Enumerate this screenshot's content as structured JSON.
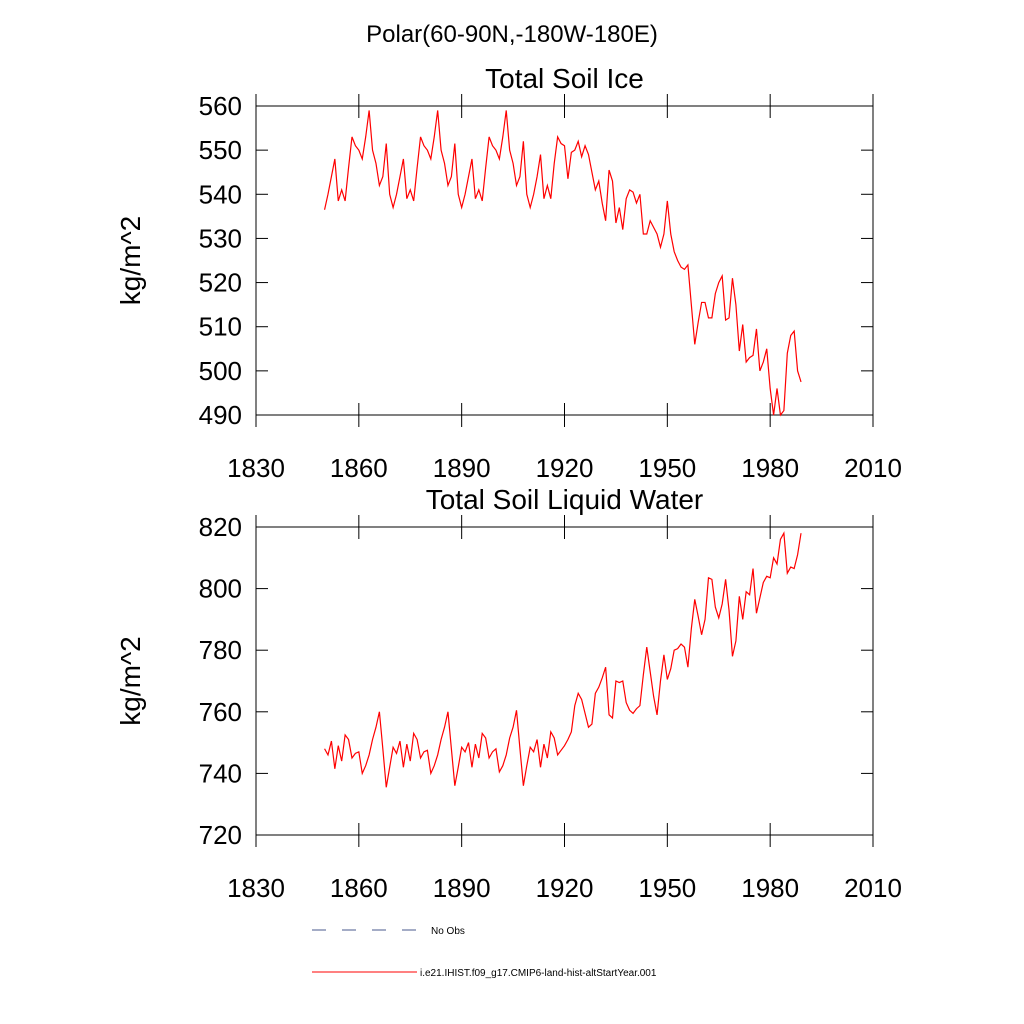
{
  "title": "Polar(60-90N,-180W-180E)",
  "chart_data": [
    {
      "type": "line",
      "title": "Total Soil Ice",
      "y_label": "kg/m^2",
      "x": [
        1850,
        1851,
        1852,
        1853,
        1854,
        1855,
        1856,
        1857,
        1858,
        1859,
        1860,
        1861,
        1862,
        1863,
        1864,
        1865,
        1866,
        1867,
        1868,
        1869,
        1870,
        1871,
        1872,
        1873,
        1874,
        1875,
        1876,
        1877,
        1878,
        1879,
        1880,
        1881,
        1882,
        1883,
        1884,
        1885,
        1886,
        1887,
        1888,
        1889,
        1890,
        1891,
        1892,
        1893,
        1894,
        1895,
        1896,
        1897,
        1898,
        1899,
        1900,
        1901,
        1902,
        1903,
        1904,
        1905,
        1906,
        1907,
        1908,
        1909,
        1910,
        1911,
        1912,
        1913,
        1914,
        1915,
        1916,
        1917,
        1918,
        1919,
        1920,
        1921,
        1922,
        1923,
        1924,
        1925,
        1926,
        1927,
        1928,
        1929,
        1930,
        1931,
        1932,
        1933,
        1934,
        1935,
        1936,
        1937,
        1938,
        1939,
        1940,
        1941,
        1942,
        1943,
        1944,
        1945,
        1946,
        1947,
        1948,
        1949,
        1950,
        1951,
        1952,
        1953,
        1954,
        1955,
        1956,
        1957,
        1958,
        1959,
        1960,
        1961,
        1962,
        1963,
        1964,
        1965,
        1966,
        1967,
        1968,
        1969,
        1970,
        1971,
        1972,
        1973,
        1974,
        1975,
        1976,
        1977,
        1978,
        1979,
        1980,
        1981,
        1982,
        1983,
        1984,
        1985,
        1986,
        1987,
        1988,
        1989
      ],
      "series": [
        {
          "color": "#ff0000",
          "values": [
            536.5,
            540,
            544,
            548,
            538.5,
            541,
            538.5,
            546,
            553,
            551,
            550,
            548,
            553,
            559,
            550,
            547,
            542,
            544,
            551.5,
            540,
            537,
            540,
            544,
            548,
            539,
            541,
            538.5,
            546,
            553,
            551,
            550,
            548,
            553,
            559,
            550,
            547,
            542,
            544,
            551.5,
            540,
            537,
            540,
            544,
            548,
            539,
            541,
            538.5,
            546,
            553,
            551,
            550,
            548,
            553,
            559,
            550,
            547,
            542,
            544,
            552,
            540,
            537,
            540,
            544,
            549,
            539,
            542,
            539,
            547,
            553,
            551.5,
            551,
            543.5,
            549.5,
            550,
            552,
            548.5,
            551,
            549,
            545,
            541,
            543,
            538,
            534,
            545.5,
            543,
            533.5,
            537,
            532,
            539,
            541,
            540.5,
            538,
            540,
            531,
            531,
            534,
            532.5,
            531,
            528,
            531,
            538.5,
            531,
            527,
            525,
            523.5,
            523,
            524,
            515,
            506,
            511,
            515.5,
            515.5,
            512,
            512,
            517.5,
            520,
            521.5,
            511.5,
            512,
            521,
            515,
            504.5,
            510.5,
            502,
            503,
            503.5,
            509.5,
            500,
            502,
            505,
            496,
            490,
            496,
            490,
            491,
            504,
            508,
            509,
            500,
            497.5
          ]
        }
      ],
      "xlim": [
        1830,
        2010
      ],
      "xticks": [
        1830,
        1860,
        1890,
        1920,
        1950,
        1980,
        2010
      ],
      "ylim": [
        490,
        560
      ],
      "yticks": [
        490,
        500,
        510,
        520,
        530,
        540,
        550,
        560
      ]
    },
    {
      "type": "line",
      "title": "Total Soil Liquid Water",
      "y_label": "kg/m^2",
      "x": [
        1850,
        1851,
        1852,
        1853,
        1854,
        1855,
        1856,
        1857,
        1858,
        1859,
        1860,
        1861,
        1862,
        1863,
        1864,
        1865,
        1866,
        1867,
        1868,
        1869,
        1870,
        1871,
        1872,
        1873,
        1874,
        1875,
        1876,
        1877,
        1878,
        1879,
        1880,
        1881,
        1882,
        1883,
        1884,
        1885,
        1886,
        1887,
        1888,
        1889,
        1890,
        1891,
        1892,
        1893,
        1894,
        1895,
        1896,
        1897,
        1898,
        1899,
        1900,
        1901,
        1902,
        1903,
        1904,
        1905,
        1906,
        1907,
        1908,
        1909,
        1910,
        1911,
        1912,
        1913,
        1914,
        1915,
        1916,
        1917,
        1918,
        1919,
        1920,
        1921,
        1922,
        1923,
        1924,
        1925,
        1926,
        1927,
        1928,
        1929,
        1930,
        1931,
        1932,
        1933,
        1934,
        1935,
        1936,
        1937,
        1938,
        1939,
        1940,
        1941,
        1942,
        1943,
        1944,
        1945,
        1946,
        1947,
        1948,
        1949,
        1950,
        1951,
        1952,
        1953,
        1954,
        1955,
        1956,
        1957,
        1958,
        1959,
        1960,
        1961,
        1962,
        1963,
        1964,
        1965,
        1966,
        1967,
        1968,
        1969,
        1970,
        1971,
        1972,
        1973,
        1974,
        1975,
        1976,
        1977,
        1978,
        1979,
        1980,
        1981,
        1982,
        1983,
        1984,
        1985,
        1986,
        1987,
        1988,
        1989
      ],
      "series": [
        {
          "color": "#ff0000",
          "values": [
            748,
            746,
            750.5,
            741.5,
            749,
            744,
            752.5,
            751,
            745,
            746.5,
            747,
            740,
            742.5,
            746,
            751,
            755,
            760,
            748,
            735.5,
            742,
            748.5,
            746.5,
            750.5,
            742,
            749.5,
            744,
            753,
            751,
            745,
            747,
            747.5,
            740,
            742.5,
            746,
            751,
            755,
            760,
            748,
            736,
            742,
            748.5,
            747,
            750,
            742,
            749.5,
            745,
            753,
            751.5,
            745,
            747,
            748,
            740.5,
            742.5,
            746,
            751.5,
            755,
            760.5,
            748,
            736,
            742.5,
            748.5,
            747,
            751,
            742,
            749.5,
            745,
            753.5,
            751.5,
            746,
            747.5,
            749,
            751,
            753.5,
            762,
            766,
            764,
            759.5,
            755,
            756,
            766,
            768,
            771,
            774.5,
            759,
            758,
            770,
            769.5,
            770,
            763,
            760.5,
            759.5,
            761,
            762,
            772,
            781,
            773,
            765,
            759,
            770,
            778.5,
            770.5,
            774,
            780,
            780.5,
            782,
            781,
            774.5,
            787,
            796.5,
            791,
            785,
            790,
            803.5,
            803,
            794,
            790.5,
            795,
            803,
            793,
            778,
            783,
            797.5,
            790,
            799,
            798,
            806.5,
            792,
            797,
            802,
            804,
            803.5,
            810,
            808,
            816,
            818,
            805,
            807,
            806.5,
            811,
            818
          ]
        }
      ],
      "xlim": [
        1830,
        2010
      ],
      "xticks": [
        1830,
        1860,
        1890,
        1920,
        1950,
        1980,
        2010
      ],
      "ylim": [
        720,
        820
      ],
      "yticks": [
        720,
        740,
        760,
        780,
        800,
        820
      ]
    }
  ],
  "legend": [
    {
      "label": "No Obs",
      "color": "#4a5a8c",
      "dashed": true
    },
    {
      "label": "i.e21.IHIST.f09_g17.CMIP6-land-hist-altStartYear.001",
      "color": "#ff0000",
      "dashed": false
    }
  ]
}
